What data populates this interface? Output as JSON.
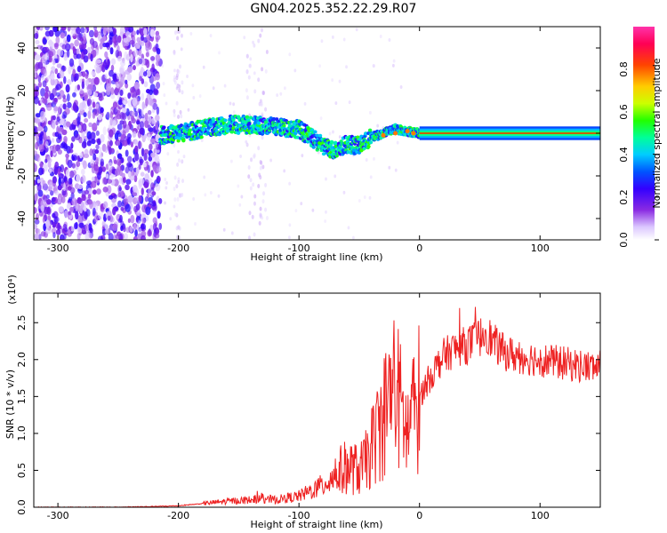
{
  "title": "GN04.2025.352.22.29.R07",
  "colors": {
    "snr_line": "#ee2222",
    "trend_line": "#ff0000",
    "background": "#ffffff",
    "axes": "#000000"
  },
  "chart_data": [
    {
      "type": "heatmap",
      "xlabel": "Height of straight line (km)",
      "ylabel": "Frequency (Hz)",
      "xlim": [
        -320,
        150
      ],
      "ylim": [
        -50,
        50
      ],
      "xticks": [
        -300,
        -200,
        -100,
        0,
        100
      ],
      "xtick_labels": [
        "-300",
        "-200",
        "-100",
        "0",
        "100"
      ],
      "yticks": [
        -40,
        -20,
        0,
        20,
        40
      ],
      "ytick_labels": [
        "-40",
        "-20",
        "0",
        "20",
        "40"
      ],
      "colorbar": {
        "label": "Normalized spectral amplitude",
        "range": [
          0,
          1
        ],
        "ticks": [
          0.0,
          0.2,
          0.4,
          0.6,
          0.8
        ],
        "tick_labels": [
          "0.0",
          "0.2",
          "0.4",
          "0.6",
          "0.8"
        ],
        "colormap": [
          "#ffffff",
          "#dcc8ff",
          "#8a2be2",
          "#3300ff",
          "#0055ff",
          "#00ccff",
          "#00ff99",
          "#22ff00",
          "#ccff00",
          "#ffcc00",
          "#ff4400",
          "#ff0055",
          "#ff33aa"
        ]
      },
      "features": [
        {
          "region": "noise",
          "x_range": [
            -320,
            -215
          ],
          "y_range": [
            -50,
            50
          ],
          "amplitude": 0.2
        },
        {
          "region": "signal_trace",
          "x": [
            -215,
            -200,
            -180,
            -160,
            -140,
            -120,
            -100,
            -90,
            -80,
            -70,
            -60,
            -50,
            -40,
            -30,
            -20,
            -10,
            0,
            50,
            100,
            150
          ],
          "y": [
            -1,
            0,
            2,
            4,
            4,
            3,
            2,
            -2,
            -6,
            -8,
            -5,
            -6,
            -2,
            0,
            2,
            1,
            0,
            0,
            0,
            0
          ]
        }
      ]
    },
    {
      "type": "line",
      "xlabel": "Height of straight line (km)",
      "ylabel": "SNR (10 * v/v)",
      "y_multiplier": "(x10⁴)",
      "xlim": [
        -320,
        150
      ],
      "ylim": [
        0,
        2.9
      ],
      "xticks": [
        -300,
        -200,
        -100,
        0,
        100
      ],
      "xtick_labels": [
        "-300",
        "-200",
        "-100",
        "0",
        "100"
      ],
      "yticks": [
        0.0,
        0.5,
        1.0,
        1.5,
        2.0,
        2.5
      ],
      "ytick_labels": [
        "0.0",
        "0.5",
        "1.0",
        "1.5",
        "2.0",
        "2.5"
      ],
      "series": [
        {
          "x": [
            -320,
            -300,
            -250,
            -220,
            -200,
            -180,
            -160,
            -140,
            -130,
            -120,
            -100,
            -90,
            -80,
            -70,
            -60,
            -50,
            -45,
            -40,
            -35,
            -30,
            -25,
            -20,
            -15,
            -10,
            -5,
            0,
            10,
            20,
            30,
            40,
            50,
            55,
            60,
            70,
            80,
            100,
            120,
            140,
            150
          ],
          "y": [
            0.0,
            0.0,
            0.0,
            0.01,
            0.02,
            0.05,
            0.08,
            0.1,
            0.12,
            0.1,
            0.15,
            0.22,
            0.3,
            0.45,
            0.55,
            0.5,
            0.6,
            0.8,
            1.0,
            1.2,
            1.5,
            1.6,
            1.3,
            1.0,
            1.3,
            1.5,
            1.8,
            2.05,
            2.15,
            2.2,
            2.3,
            2.4,
            2.25,
            2.1,
            2.05,
            2.0,
            1.95,
            1.9,
            1.9
          ]
        }
      ]
    }
  ]
}
